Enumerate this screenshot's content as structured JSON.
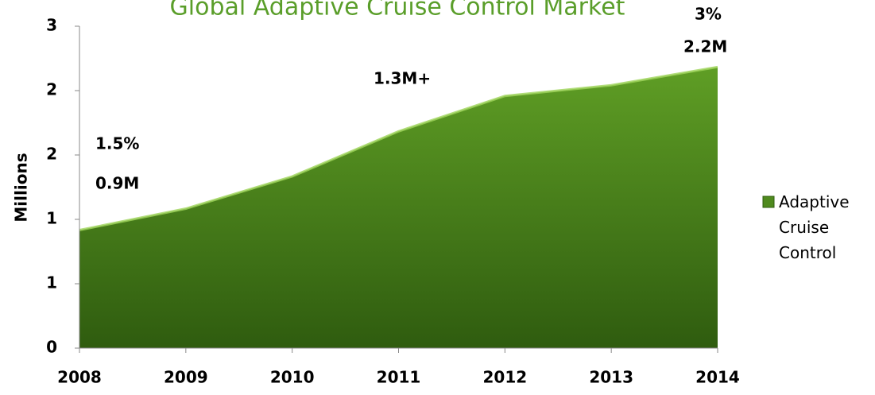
{
  "chart_data": {
    "type": "area",
    "title": "Global Adaptive Cruise Control Market",
    "y_label": "Millions",
    "categories": [
      "2008",
      "2009",
      "2010",
      "2011",
      "2012",
      "2013",
      "2014"
    ],
    "series": [
      {
        "name": "Adaptive Cruise Control",
        "color": "#4f8a1e",
        "values": [
          1.1,
          1.3,
          1.6,
          2.02,
          2.35,
          2.45,
          2.62
        ]
      }
    ],
    "ylim": [
      0,
      3
    ],
    "yticks": [
      0,
      {
        "value": 0.6,
        "label": "1"
      },
      {
        "value": 1.2,
        "label": "1"
      },
      {
        "value": 1.8,
        "label": "2"
      },
      {
        "value": 2.4,
        "label": "2"
      },
      3
    ],
    "annotations": [
      "1.5%",
      "0.9M",
      "1.3M+",
      "3%",
      "2.2M"
    ]
  }
}
